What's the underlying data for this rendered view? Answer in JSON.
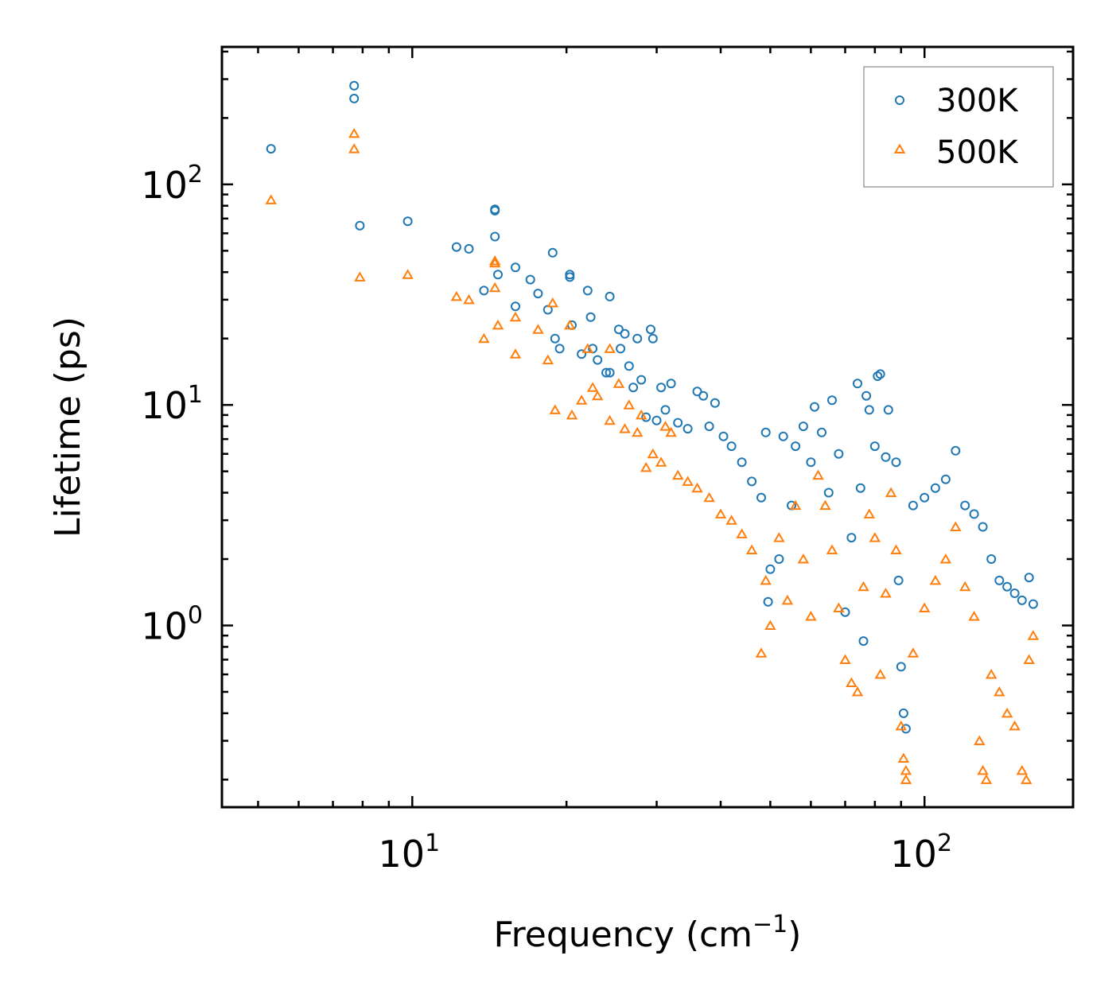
{
  "chart_data": {
    "type": "scatter",
    "title": "",
    "xlabel": "Frequency (cm",
    "xlabel_sup": "−1",
    "xlabel_suffix": ")",
    "ylabel": "Lifetime (ps)",
    "xscale": "log",
    "yscale": "log",
    "xlim": [
      4.25,
      195
    ],
    "ylim": [
      0.15,
      420
    ],
    "x_ticks": [
      {
        "value": 10,
        "base": "10",
        "exp": "1"
      },
      {
        "value": 100,
        "base": "10",
        "exp": "2"
      }
    ],
    "y_ticks": [
      {
        "value": 1,
        "base": "10",
        "exp": "0"
      },
      {
        "value": 10,
        "base": "10",
        "exp": "1"
      },
      {
        "value": 100,
        "base": "10",
        "exp": "2"
      }
    ],
    "legend_position": "top-right",
    "series": [
      {
        "name": "300K",
        "marker": "circle",
        "color": "#1f77b4",
        "points": [
          [
            5.3,
            145
          ],
          [
            7.7,
            280
          ],
          [
            7.7,
            245
          ],
          [
            7.9,
            65
          ],
          [
            9.8,
            68
          ],
          [
            12.2,
            52
          ],
          [
            12.9,
            51
          ],
          [
            13.8,
            33
          ],
          [
            14.5,
            76
          ],
          [
            14.5,
            77
          ],
          [
            14.5,
            58
          ],
          [
            14.7,
            39
          ],
          [
            15.9,
            42
          ],
          [
            15.9,
            28
          ],
          [
            17.0,
            37
          ],
          [
            17.6,
            32
          ],
          [
            18.4,
            27
          ],
          [
            18.8,
            49
          ],
          [
            19.0,
            20
          ],
          [
            19.4,
            18
          ],
          [
            20.3,
            39
          ],
          [
            20.3,
            38
          ],
          [
            20.5,
            23
          ],
          [
            21.4,
            17
          ],
          [
            22.0,
            33
          ],
          [
            22.3,
            25
          ],
          [
            22.5,
            18
          ],
          [
            23.0,
            16
          ],
          [
            23.9,
            14
          ],
          [
            24.3,
            31
          ],
          [
            24.3,
            14
          ],
          [
            25.3,
            22
          ],
          [
            25.5,
            18
          ],
          [
            26.0,
            21
          ],
          [
            26.5,
            15
          ],
          [
            27.0,
            12
          ],
          [
            27.5,
            20
          ],
          [
            28.0,
            13
          ],
          [
            28.6,
            8.8
          ],
          [
            29.2,
            22
          ],
          [
            29.5,
            20
          ],
          [
            30.0,
            8.5
          ],
          [
            30.6,
            12
          ],
          [
            31.2,
            9.5
          ],
          [
            32.0,
            12.5
          ],
          [
            33.0,
            8.3
          ],
          [
            34.5,
            7.8
          ],
          [
            36.0,
            11.5
          ],
          [
            37.0,
            11
          ],
          [
            38.0,
            8.0
          ],
          [
            39.0,
            10.2
          ],
          [
            40.5,
            7.2
          ],
          [
            42.0,
            6.5
          ],
          [
            44.0,
            5.5
          ],
          [
            46.0,
            4.5
          ],
          [
            48.0,
            3.8
          ],
          [
            49.0,
            7.5
          ],
          [
            49.5,
            1.28
          ],
          [
            50.0,
            1.8
          ],
          [
            52.0,
            2.0
          ],
          [
            53.0,
            7.2
          ],
          [
            55.0,
            3.5
          ],
          [
            56.0,
            6.5
          ],
          [
            58.0,
            8.0
          ],
          [
            60.0,
            5.5
          ],
          [
            61.0,
            9.8
          ],
          [
            63.0,
            7.5
          ],
          [
            65.0,
            4.0
          ],
          [
            66.0,
            10.5
          ],
          [
            68.0,
            6.0
          ],
          [
            70.0,
            1.15
          ],
          [
            72.0,
            2.5
          ],
          [
            74.0,
            12.5
          ],
          [
            75.0,
            4.2
          ],
          [
            76.0,
            0.85
          ],
          [
            77.0,
            11
          ],
          [
            78.0,
            9.5
          ],
          [
            80.0,
            6.5
          ],
          [
            81.0,
            13.5
          ],
          [
            82.0,
            13.8
          ],
          [
            84.0,
            5.8
          ],
          [
            85.0,
            9.5
          ],
          [
            88.0,
            5.5
          ],
          [
            89.0,
            1.6
          ],
          [
            90.0,
            0.65
          ],
          [
            91.0,
            0.4
          ],
          [
            92.0,
            0.34
          ],
          [
            95.0,
            3.5
          ],
          [
            100.0,
            3.8
          ],
          [
            105.0,
            4.2
          ],
          [
            110.0,
            4.6
          ],
          [
            115.0,
            6.2
          ],
          [
            120.0,
            3.5
          ],
          [
            125.0,
            3.2
          ],
          [
            130.0,
            2.8
          ],
          [
            135.0,
            2.0
          ],
          [
            140.0,
            1.6
          ],
          [
            145.0,
            1.5
          ],
          [
            150.0,
            1.4
          ],
          [
            155.0,
            1.3
          ],
          [
            160.0,
            1.65
          ],
          [
            163.0,
            1.25
          ]
        ]
      },
      {
        "name": "500K",
        "marker": "triangle",
        "color": "#ff7f0e",
        "points": [
          [
            5.3,
            85
          ],
          [
            7.7,
            170
          ],
          [
            7.7,
            145
          ],
          [
            7.9,
            38
          ],
          [
            9.8,
            39
          ],
          [
            12.2,
            31
          ],
          [
            12.9,
            30
          ],
          [
            13.8,
            20
          ],
          [
            14.5,
            45
          ],
          [
            14.5,
            44
          ],
          [
            14.5,
            34
          ],
          [
            14.7,
            23
          ],
          [
            15.9,
            25
          ],
          [
            15.9,
            17
          ],
          [
            17.6,
            22
          ],
          [
            18.4,
            16
          ],
          [
            18.8,
            29
          ],
          [
            19.0,
            9.5
          ],
          [
            20.3,
            23
          ],
          [
            20.5,
            9.0
          ],
          [
            21.4,
            10.5
          ],
          [
            22.0,
            18
          ],
          [
            22.5,
            12
          ],
          [
            23.0,
            11
          ],
          [
            24.3,
            18
          ],
          [
            24.3,
            8.5
          ],
          [
            25.3,
            12.5
          ],
          [
            26.0,
            7.8
          ],
          [
            26.5,
            10
          ],
          [
            27.5,
            7.5
          ],
          [
            28.0,
            9.0
          ],
          [
            28.6,
            5.2
          ],
          [
            29.5,
            6.0
          ],
          [
            30.6,
            5.5
          ],
          [
            31.2,
            8.0
          ],
          [
            32.0,
            7.5
          ],
          [
            33.0,
            4.8
          ],
          [
            34.5,
            4.5
          ],
          [
            36.0,
            4.2
          ],
          [
            38.0,
            3.8
          ],
          [
            40.0,
            3.2
          ],
          [
            42.0,
            3.0
          ],
          [
            44.0,
            2.6
          ],
          [
            46.0,
            2.2
          ],
          [
            48.0,
            0.75
          ],
          [
            49.0,
            1.6
          ],
          [
            50.0,
            1.0
          ],
          [
            52.0,
            2.5
          ],
          [
            54.0,
            1.3
          ],
          [
            56.0,
            3.5
          ],
          [
            58.0,
            2.0
          ],
          [
            60.0,
            1.1
          ],
          [
            62.0,
            4.8
          ],
          [
            64.0,
            3.5
          ],
          [
            66.0,
            2.2
          ],
          [
            68.0,
            1.2
          ],
          [
            70.0,
            0.7
          ],
          [
            72.0,
            0.55
          ],
          [
            74.0,
            0.5
          ],
          [
            76.0,
            1.5
          ],
          [
            78.0,
            3.2
          ],
          [
            80.0,
            2.5
          ],
          [
            82.0,
            0.6
          ],
          [
            84.0,
            1.4
          ],
          [
            86.0,
            4.0
          ],
          [
            88.0,
            2.2
          ],
          [
            90.0,
            0.35
          ],
          [
            91.0,
            0.25
          ],
          [
            92.0,
            0.22
          ],
          [
            92.0,
            0.2
          ],
          [
            95.0,
            0.75
          ],
          [
            100.0,
            1.2
          ],
          [
            105.0,
            1.6
          ],
          [
            110.0,
            2.0
          ],
          [
            115.0,
            2.8
          ],
          [
            120.0,
            1.5
          ],
          [
            125.0,
            1.1
          ],
          [
            128.0,
            0.3
          ],
          [
            130.0,
            0.22
          ],
          [
            132.0,
            0.2
          ],
          [
            135.0,
            0.6
          ],
          [
            140.0,
            0.5
          ],
          [
            145.0,
            0.4
          ],
          [
            150.0,
            0.35
          ],
          [
            155.0,
            0.22
          ],
          [
            158.0,
            0.2
          ],
          [
            160.0,
            0.7
          ],
          [
            163.0,
            0.9
          ]
        ]
      }
    ]
  },
  "legend": {
    "items": [
      {
        "label": "300K",
        "color": "#1f77b4",
        "marker": "circle"
      },
      {
        "label": "500K",
        "color": "#ff7f0e",
        "marker": "triangle"
      }
    ]
  }
}
